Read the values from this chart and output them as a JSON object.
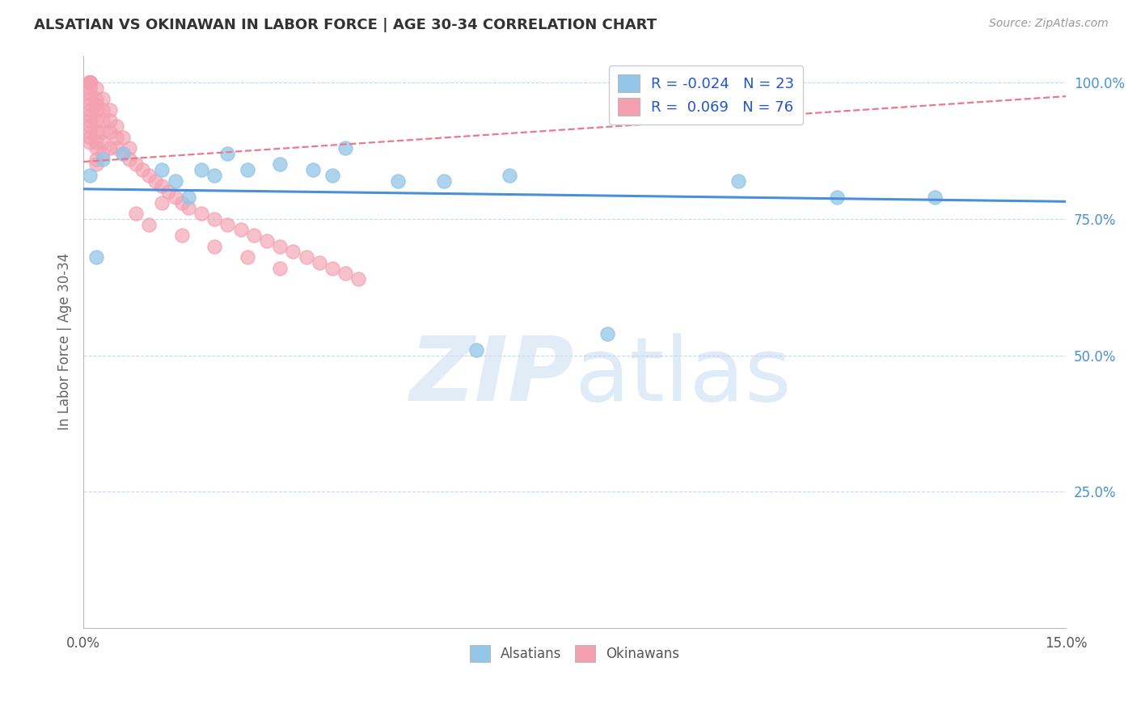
{
  "title": "ALSATIAN VS OKINAWAN IN LABOR FORCE | AGE 30-34 CORRELATION CHART",
  "source": "Source: ZipAtlas.com",
  "ylabel": "In Labor Force | Age 30-34",
  "xlim": [
    0.0,
    0.15
  ],
  "ylim": [
    0.0,
    1.05
  ],
  "ytick_positions": [
    0.25,
    0.5,
    0.75,
    1.0
  ],
  "ytick_labels": [
    "25.0%",
    "50.0%",
    "75.0%",
    "100.0%"
  ],
  "legend_r_alsatian": "-0.024",
  "legend_n_alsatian": "23",
  "legend_r_okinawan": "0.069",
  "legend_n_okinawan": "76",
  "legend_label_alsatian": "Alsatians",
  "legend_label_okinawan": "Okinawans",
  "alsatian_color": "#93c6e8",
  "okinawan_color": "#f4a0b0",
  "alsatian_line_color": "#4a90d9",
  "okinawan_line_color": "#e87a8a",
  "alsatian_line_y0": 0.805,
  "alsatian_line_y1": 0.782,
  "okinawan_line_y0": 0.855,
  "okinawan_line_y1": 0.975,
  "alsatian_x": [
    0.001,
    0.002,
    0.003,
    0.006,
    0.012,
    0.014,
    0.016,
    0.018,
    0.022,
    0.03,
    0.035,
    0.04,
    0.055,
    0.065,
    0.02,
    0.025,
    0.038,
    0.048,
    0.06,
    0.08,
    0.1,
    0.115,
    0.13
  ],
  "alsatian_y": [
    0.83,
    0.68,
    0.86,
    0.87,
    0.84,
    0.82,
    0.79,
    0.84,
    0.87,
    0.85,
    0.84,
    0.88,
    0.82,
    0.83,
    0.83,
    0.84,
    0.83,
    0.82,
    0.51,
    0.54,
    0.82,
    0.79,
    0.79
  ],
  "okinawan_x": [
    0.001,
    0.001,
    0.001,
    0.001,
    0.001,
    0.001,
    0.001,
    0.001,
    0.001,
    0.001,
    0.001,
    0.001,
    0.001,
    0.001,
    0.001,
    0.001,
    0.001,
    0.001,
    0.001,
    0.001,
    0.002,
    0.002,
    0.002,
    0.002,
    0.002,
    0.002,
    0.002,
    0.002,
    0.002,
    0.002,
    0.003,
    0.003,
    0.003,
    0.003,
    0.003,
    0.003,
    0.004,
    0.004,
    0.004,
    0.004,
    0.005,
    0.005,
    0.005,
    0.006,
    0.006,
    0.007,
    0.007,
    0.008,
    0.009,
    0.01,
    0.011,
    0.012,
    0.013,
    0.014,
    0.015,
    0.016,
    0.018,
    0.02,
    0.022,
    0.024,
    0.026,
    0.028,
    0.03,
    0.032,
    0.034,
    0.036,
    0.038,
    0.04,
    0.042,
    0.012,
    0.008,
    0.01,
    0.015,
    0.02,
    0.025,
    0.03
  ],
  "okinawan_y": [
    1.0,
    1.0,
    1.0,
    1.0,
    1.0,
    1.0,
    1.0,
    1.0,
    1.0,
    0.99,
    0.98,
    0.97,
    0.96,
    0.95,
    0.94,
    0.93,
    0.92,
    0.91,
    0.9,
    0.89,
    0.99,
    0.97,
    0.96,
    0.95,
    0.93,
    0.91,
    0.89,
    0.88,
    0.86,
    0.85,
    0.97,
    0.95,
    0.93,
    0.91,
    0.89,
    0.87,
    0.95,
    0.93,
    0.91,
    0.88,
    0.92,
    0.9,
    0.88,
    0.9,
    0.87,
    0.88,
    0.86,
    0.85,
    0.84,
    0.83,
    0.82,
    0.81,
    0.8,
    0.79,
    0.78,
    0.77,
    0.76,
    0.75,
    0.74,
    0.73,
    0.72,
    0.71,
    0.7,
    0.69,
    0.68,
    0.67,
    0.66,
    0.65,
    0.64,
    0.78,
    0.76,
    0.74,
    0.72,
    0.7,
    0.68,
    0.66
  ]
}
